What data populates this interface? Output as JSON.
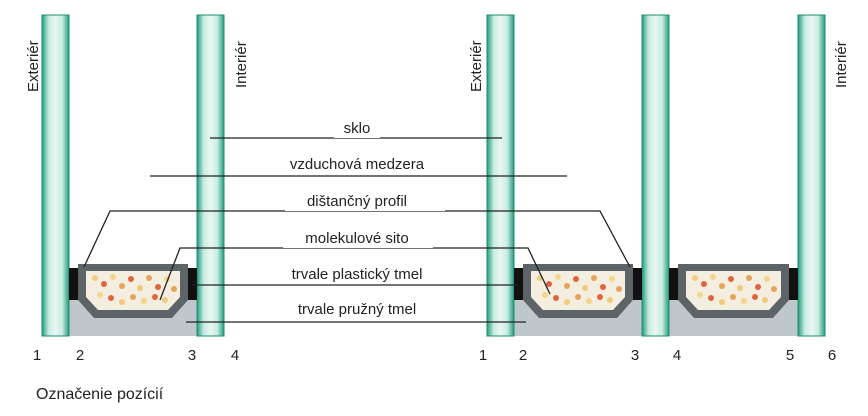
{
  "side_labels": {
    "exterior": "Exteriér",
    "interior": "Interiér"
  },
  "legend": {
    "glass": "sklo",
    "air_gap": "vzduchová medzera",
    "spacer": "dištančný profil",
    "molecular_sieve": "molekulové sito",
    "plastic_sealant": "trvale plastický tmel",
    "elastic_sealant": "trvale pružný tmel"
  },
  "left_unit": {
    "positions": [
      "1",
      "2",
      "3",
      "4"
    ]
  },
  "right_unit": {
    "positions": [
      "1",
      "2",
      "3",
      "4",
      "5",
      "6"
    ]
  },
  "caption": "Označenie pozícií",
  "colors": {
    "glass": "#27a88a",
    "glass_light": "#d7f0e9",
    "sealant": "#bfc7cb",
    "spacer": "#5c6468",
    "spacer_inner": "#f3eedf",
    "butyl": "#111111",
    "line": "#222222"
  }
}
